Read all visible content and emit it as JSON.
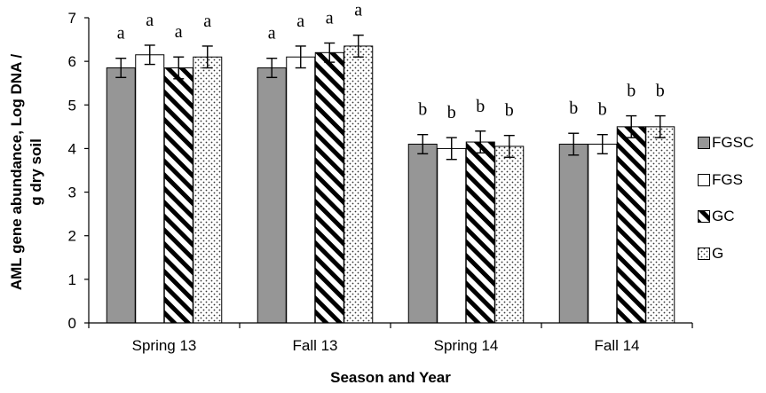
{
  "chart_data": {
    "type": "bar",
    "title": "",
    "xlabel": "Season and Year",
    "ylabel_line1": "AML gene abundance, Log DNA /",
    "ylabel_line2": "g dry soil",
    "ylim": [
      0,
      7
    ],
    "yticks": [
      "0",
      "1",
      "2",
      "3",
      "4",
      "5",
      "6",
      "7"
    ],
    "categories": [
      "Spring 13",
      "Fall 13",
      "Spring 14",
      "Fall 14"
    ],
    "legend_position": "right",
    "series": [
      {
        "name": "FGSC",
        "fill": "gray",
        "color": "#969696",
        "values": [
          5.85,
          5.85,
          4.1,
          4.1
        ],
        "errors": [
          0.22,
          0.22,
          0.22,
          0.25
        ],
        "letters": [
          "a",
          "a",
          "b",
          "b"
        ]
      },
      {
        "name": "FGS",
        "fill": "white",
        "color": "#ffffff",
        "values": [
          6.15,
          6.1,
          4.0,
          4.1
        ],
        "errors": [
          0.22,
          0.25,
          0.25,
          0.22
        ],
        "letters": [
          "a",
          "a",
          "b",
          "b"
        ]
      },
      {
        "name": "GC",
        "fill": "stripes",
        "color": "#000000",
        "values": [
          5.85,
          6.2,
          4.15,
          4.5
        ],
        "errors": [
          0.25,
          0.22,
          0.25,
          0.25
        ],
        "letters": [
          "a",
          "a",
          "b",
          "b"
        ]
      },
      {
        "name": "G",
        "fill": "dots",
        "color": "#333333",
        "values": [
          6.1,
          6.35,
          4.05,
          4.5
        ],
        "errors": [
          0.25,
          0.25,
          0.25,
          0.25
        ],
        "letters": [
          "a",
          "a",
          "b",
          "b"
        ]
      }
    ]
  }
}
